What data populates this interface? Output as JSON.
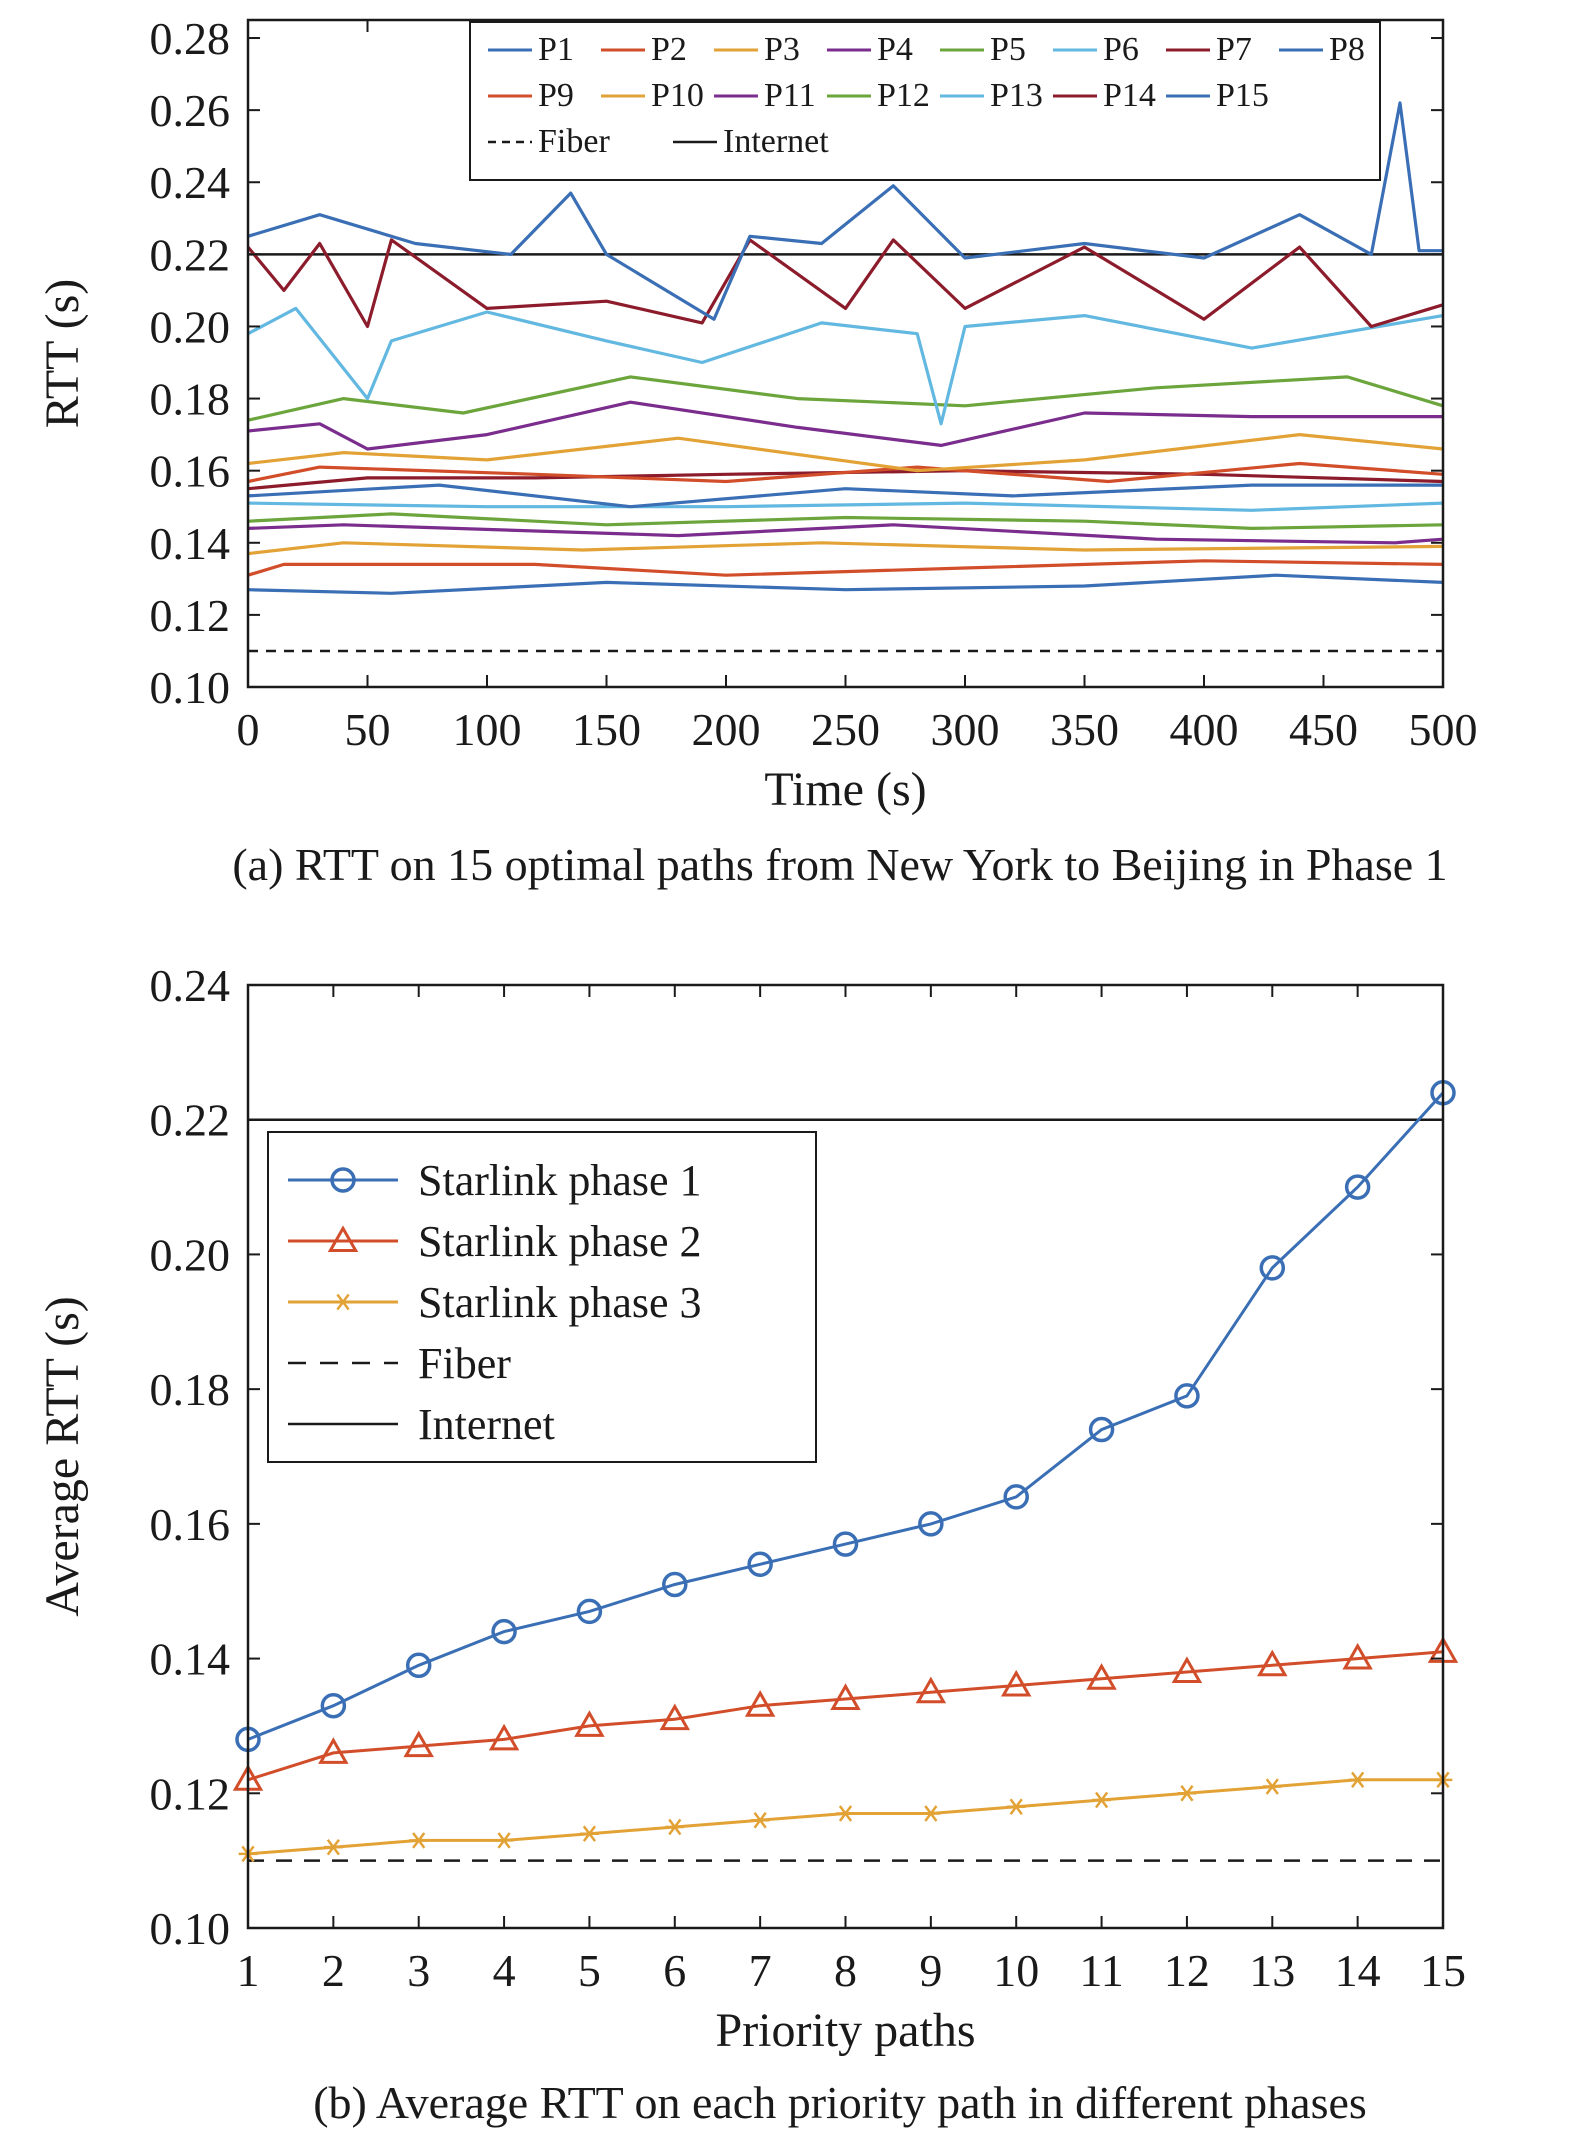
{
  "chart_data": [
    {
      "type": "line",
      "title": "",
      "caption": "(a) RTT on 15 optimal paths from New York to Beijing in Phase 1",
      "xlabel": "Time (s)",
      "ylabel": "RTT (s)",
      "xlim": [
        0,
        500
      ],
      "ylim": [
        0.1,
        0.285
      ],
      "xticks": [
        "0",
        "50",
        "100",
        "150",
        "200",
        "250",
        "300",
        "350",
        "400",
        "450",
        "500"
      ],
      "yticks": [
        "0.10",
        "0.12",
        "0.14",
        "0.16",
        "0.18",
        "0.20",
        "0.22",
        "0.24",
        "0.26",
        "0.28"
      ],
      "legend_position": "top-right",
      "reference_lines": [
        {
          "name": "Fiber",
          "value": 0.11,
          "style": "dashed",
          "color": "#1a1a1a"
        },
        {
          "name": "Internet",
          "value": 0.22,
          "style": "solid",
          "color": "#1a1a1a"
        }
      ],
      "series": [
        {
          "name": "P1",
          "color": "#3a6fb5",
          "points": [
            [
              0,
              0.127
            ],
            [
              60,
              0.126
            ],
            [
              150,
              0.129
            ],
            [
              250,
              0.127
            ],
            [
              350,
              0.128
            ],
            [
              430,
              0.131
            ],
            [
              500,
              0.129
            ]
          ]
        },
        {
          "name": "P2",
          "color": "#d24e2a",
          "points": [
            [
              0,
              0.131
            ],
            [
              15,
              0.134
            ],
            [
              120,
              0.134
            ],
            [
              200,
              0.131
            ],
            [
              300,
              0.133
            ],
            [
              400,
              0.135
            ],
            [
              500,
              0.134
            ]
          ]
        },
        {
          "name": "P3",
          "color": "#e2a236",
          "points": [
            [
              0,
              0.137
            ],
            [
              40,
              0.14
            ],
            [
              140,
              0.138
            ],
            [
              240,
              0.14
            ],
            [
              350,
              0.138
            ],
            [
              500,
              0.139
            ]
          ]
        },
        {
          "name": "P4",
          "color": "#7a2d8c",
          "points": [
            [
              0,
              0.144
            ],
            [
              40,
              0.145
            ],
            [
              180,
              0.142
            ],
            [
              270,
              0.145
            ],
            [
              380,
              0.141
            ],
            [
              480,
              0.14
            ],
            [
              500,
              0.141
            ]
          ]
        },
        {
          "name": "P5",
          "color": "#6ba53c",
          "points": [
            [
              0,
              0.146
            ],
            [
              60,
              0.148
            ],
            [
              150,
              0.145
            ],
            [
              250,
              0.147
            ],
            [
              350,
              0.146
            ],
            [
              420,
              0.144
            ],
            [
              500,
              0.145
            ]
          ]
        },
        {
          "name": "P6",
          "color": "#62b8e0",
          "points": [
            [
              0,
              0.151
            ],
            [
              100,
              0.15
            ],
            [
              200,
              0.15
            ],
            [
              300,
              0.151
            ],
            [
              420,
              0.149
            ],
            [
              500,
              0.151
            ]
          ]
        },
        {
          "name": "P7",
          "color": "#8c1c2b",
          "points": [
            [
              0,
              0.155
            ],
            [
              50,
              0.158
            ],
            [
              120,
              0.158
            ],
            [
              200,
              0.159
            ],
            [
              300,
              0.16
            ],
            [
              400,
              0.159
            ],
            [
              500,
              0.157
            ]
          ]
        },
        {
          "name": "P8",
          "color": "#3a6fb5",
          "points": [
            [
              0,
              0.153
            ],
            [
              80,
              0.156
            ],
            [
              160,
              0.15
            ],
            [
              250,
              0.155
            ],
            [
              320,
              0.153
            ],
            [
              420,
              0.156
            ],
            [
              500,
              0.156
            ]
          ]
        },
        {
          "name": "P9",
          "color": "#d24e2a",
          "points": [
            [
              0,
              0.157
            ],
            [
              30,
              0.161
            ],
            [
              120,
              0.159
            ],
            [
              200,
              0.157
            ],
            [
              280,
              0.161
            ],
            [
              360,
              0.157
            ],
            [
              440,
              0.162
            ],
            [
              500,
              0.159
            ]
          ]
        },
        {
          "name": "P10",
          "color": "#e2a236",
          "points": [
            [
              0,
              0.162
            ],
            [
              40,
              0.165
            ],
            [
              100,
              0.163
            ],
            [
              180,
              0.169
            ],
            [
              280,
              0.16
            ],
            [
              350,
              0.163
            ],
            [
              440,
              0.17
            ],
            [
              500,
              0.166
            ]
          ]
        },
        {
          "name": "P11",
          "color": "#7a2d8c",
          "points": [
            [
              0,
              0.171
            ],
            [
              30,
              0.173
            ],
            [
              50,
              0.166
            ],
            [
              100,
              0.17
            ],
            [
              160,
              0.179
            ],
            [
              230,
              0.172
            ],
            [
              290,
              0.167
            ],
            [
              350,
              0.176
            ],
            [
              420,
              0.175
            ],
            [
              500,
              0.175
            ]
          ]
        },
        {
          "name": "P12",
          "color": "#6ba53c",
          "points": [
            [
              0,
              0.174
            ],
            [
              40,
              0.18
            ],
            [
              90,
              0.176
            ],
            [
              160,
              0.186
            ],
            [
              230,
              0.18
            ],
            [
              300,
              0.178
            ],
            [
              380,
              0.183
            ],
            [
              460,
              0.186
            ],
            [
              500,
              0.178
            ]
          ]
        },
        {
          "name": "P13",
          "color": "#62b8e0",
          "points": [
            [
              0,
              0.198
            ],
            [
              20,
              0.205
            ],
            [
              50,
              0.18
            ],
            [
              60,
              0.196
            ],
            [
              100,
              0.204
            ],
            [
              150,
              0.196
            ],
            [
              190,
              0.19
            ],
            [
              240,
              0.201
            ],
            [
              280,
              0.198
            ],
            [
              290,
              0.173
            ],
            [
              300,
              0.2
            ],
            [
              350,
              0.203
            ],
            [
              420,
              0.194
            ],
            [
              500,
              0.203
            ]
          ]
        },
        {
          "name": "P14",
          "color": "#8c1c2b",
          "points": [
            [
              0,
              0.222
            ],
            [
              15,
              0.21
            ],
            [
              30,
              0.223
            ],
            [
              50,
              0.2
            ],
            [
              60,
              0.224
            ],
            [
              100,
              0.205
            ],
            [
              150,
              0.207
            ],
            [
              190,
              0.201
            ],
            [
              210,
              0.224
            ],
            [
              250,
              0.205
            ],
            [
              270,
              0.224
            ],
            [
              300,
              0.205
            ],
            [
              350,
              0.222
            ],
            [
              400,
              0.202
            ],
            [
              440,
              0.222
            ],
            [
              470,
              0.2
            ],
            [
              500,
              0.206
            ]
          ]
        },
        {
          "name": "P15",
          "color": "#3a6fb5",
          "points": [
            [
              0,
              0.225
            ],
            [
              30,
              0.231
            ],
            [
              70,
              0.223
            ],
            [
              110,
              0.22
            ],
            [
              135,
              0.237
            ],
            [
              150,
              0.22
            ],
            [
              195,
              0.202
            ],
            [
              210,
              0.225
            ],
            [
              240,
              0.223
            ],
            [
              270,
              0.239
            ],
            [
              300,
              0.219
            ],
            [
              350,
              0.223
            ],
            [
              400,
              0.219
            ],
            [
              440,
              0.231
            ],
            [
              470,
              0.22
            ],
            [
              482,
              0.262
            ],
            [
              490,
              0.221
            ],
            [
              500,
              0.221
            ]
          ]
        }
      ]
    },
    {
      "type": "line",
      "title": "",
      "caption": "(b) Average RTT on each priority path in different phases",
      "xlabel": "Priority paths",
      "ylabel": "Average RTT (s)",
      "xlim": [
        1,
        15
      ],
      "ylim": [
        0.1,
        0.24
      ],
      "categories": [
        "1",
        "2",
        "3",
        "4",
        "5",
        "6",
        "7",
        "8",
        "9",
        "10",
        "11",
        "12",
        "13",
        "14",
        "15"
      ],
      "yticks": [
        "0.10",
        "0.12",
        "0.14",
        "0.16",
        "0.18",
        "0.20",
        "0.22",
        "0.24"
      ],
      "legend_position": "upper-left",
      "reference_lines": [
        {
          "name": "Fiber",
          "value": 0.11,
          "style": "dashed",
          "color": "#1a1a1a"
        },
        {
          "name": "Internet",
          "value": 0.22,
          "style": "solid",
          "color": "#1a1a1a"
        }
      ],
      "series": [
        {
          "name": "Starlink phase 1",
          "marker": "circle",
          "color": "#3a6fb5",
          "values": [
            0.128,
            0.133,
            0.139,
            0.144,
            0.147,
            0.151,
            0.154,
            0.157,
            0.16,
            0.164,
            0.174,
            0.179,
            0.198,
            0.21,
            0.224
          ]
        },
        {
          "name": "Starlink phase 2",
          "marker": "triangle",
          "color": "#d24e2a",
          "values": [
            0.122,
            0.126,
            0.127,
            0.128,
            0.13,
            0.131,
            0.133,
            0.134,
            0.135,
            0.136,
            0.137,
            0.138,
            0.139,
            0.14,
            0.141
          ]
        },
        {
          "name": "Starlink phase 3",
          "marker": "asterisk",
          "color": "#e2a236",
          "values": [
            0.111,
            0.112,
            0.113,
            0.113,
            0.114,
            0.115,
            0.116,
            0.117,
            0.117,
            0.118,
            0.119,
            0.12,
            0.121,
            0.122,
            0.122
          ]
        }
      ]
    }
  ]
}
